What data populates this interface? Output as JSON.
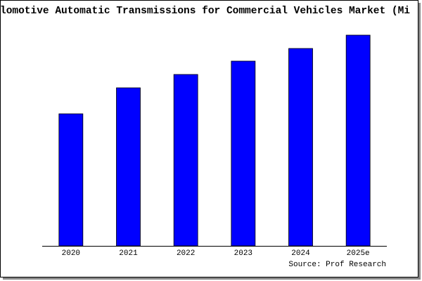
{
  "chart_data": {
    "type": "bar",
    "title": "lomotive Automatic Transmissions for Commercial Vehicles Market (Mi",
    "categories": [
      "2020",
      "2021",
      "2022",
      "2023",
      "2024",
      "2025e"
    ],
    "values": [
      188,
      225,
      244,
      263,
      281,
      300
    ],
    "color": "#0000ff",
    "source": "Source: Prof Research"
  }
}
